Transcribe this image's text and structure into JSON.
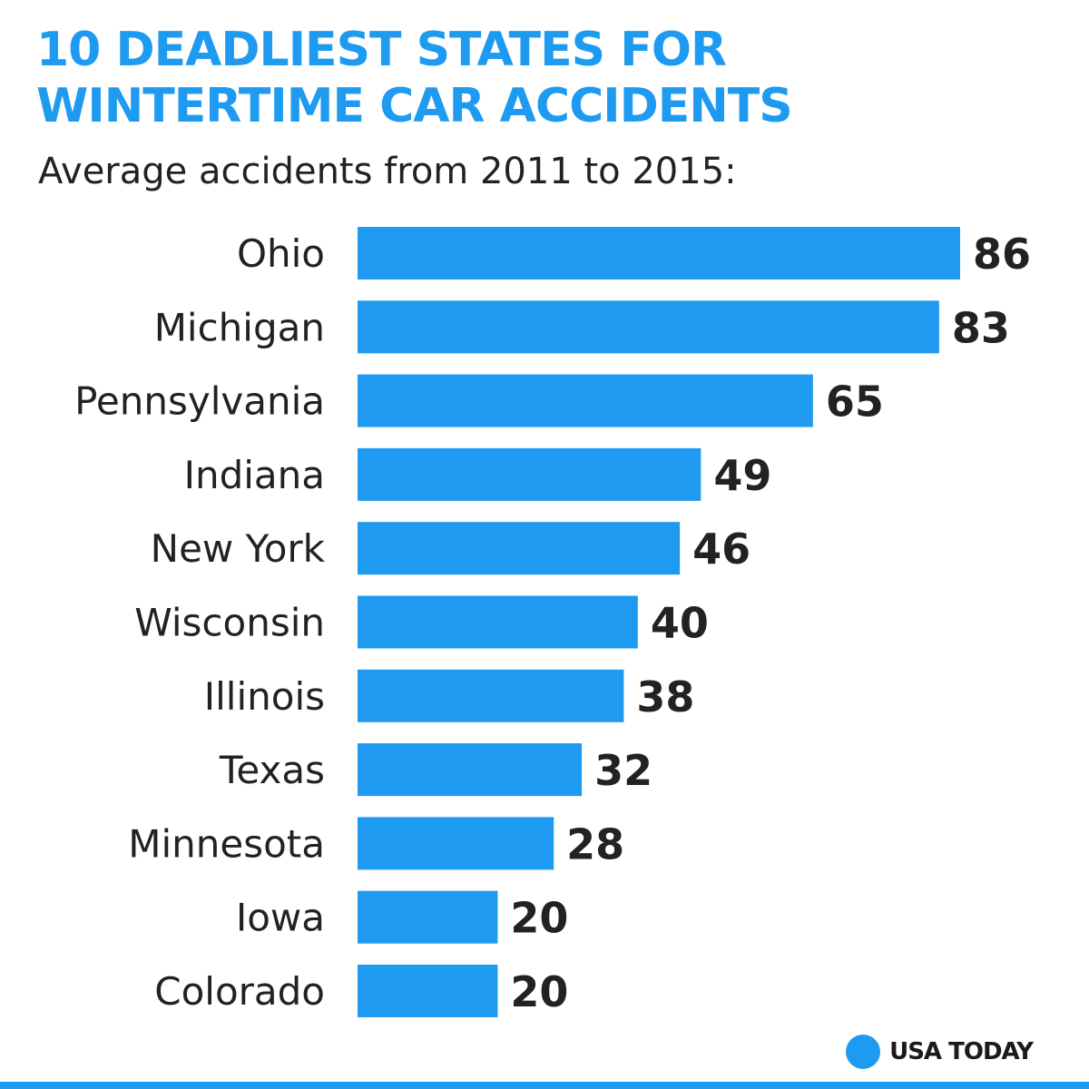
{
  "colors": {
    "accent": "#1e9bf0",
    "text": "#222222"
  },
  "chart_data": {
    "type": "bar",
    "orientation": "horizontal",
    "title": "10 DEADLIEST STATES FOR WINTERTIME CAR ACCIDENTS",
    "subtitle": "Average accidents from 2011 to 2015:",
    "categories": [
      "Ohio",
      "Michigan",
      "Pennsylvania",
      "Indiana",
      "New York",
      "Wisconsin",
      "Illinois",
      "Texas",
      "Minnesota",
      "Iowa",
      "Colorado"
    ],
    "values": [
      86,
      83,
      65,
      49,
      46,
      40,
      38,
      32,
      28,
      20,
      20
    ],
    "data_labels": [
      "86",
      "83",
      "65",
      "49",
      "46",
      "40",
      "38",
      "32",
      "28",
      "20",
      "20"
    ],
    "xlim": [
      0,
      86
    ],
    "grid": false,
    "legend": "none",
    "bar_color": "#1e9bf0"
  },
  "brand": {
    "name": "USA TODAY",
    "icon": "circle-logo-icon"
  }
}
